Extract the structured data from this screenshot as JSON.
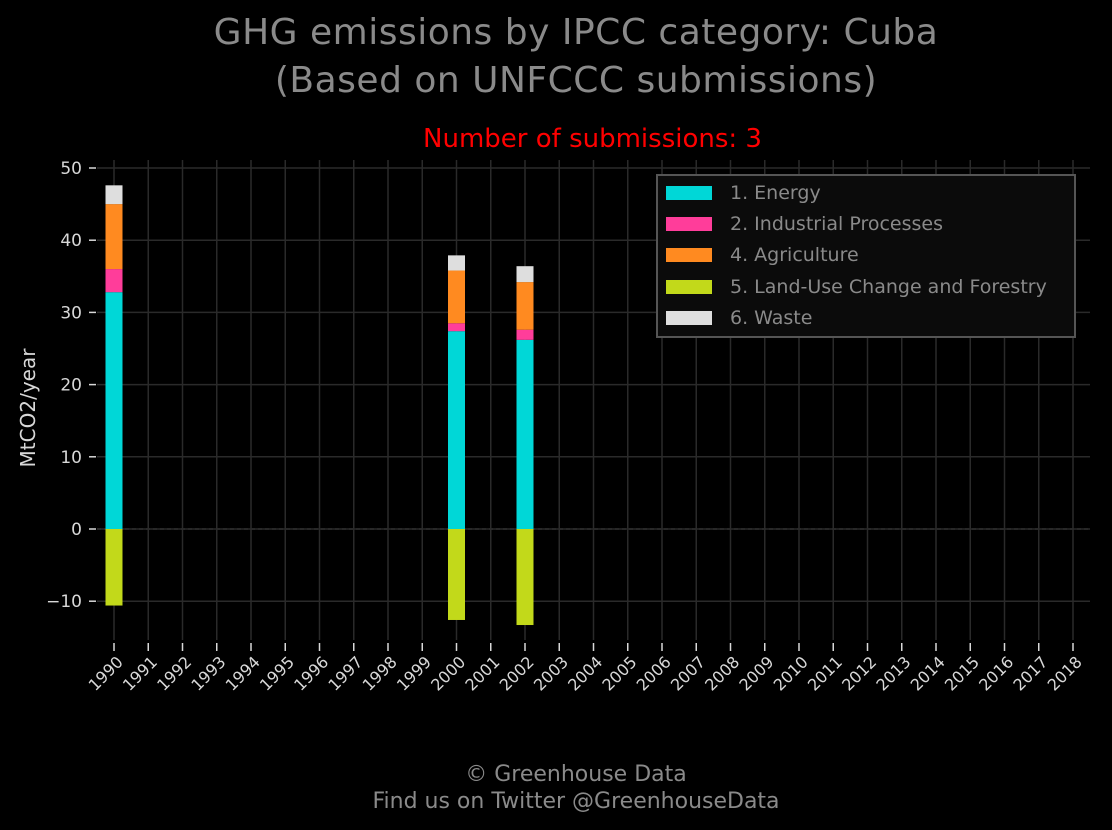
{
  "title_line1": "GHG emissions by IPCC category: Cuba",
  "title_line2": "(Based on UNFCCC submissions)",
  "subtitle": "Number of submissions: 3",
  "footer_line1": "© Greenhouse Data",
  "footer_line2": "Find us on Twitter @GreenhouseData",
  "colors": {
    "background": "#000000",
    "grid": "#2a2a2a",
    "tick_label": "#d8d8d8",
    "title": "#8a8a8a",
    "subtitle": "#ff0000"
  },
  "chart_data": {
    "type": "bar",
    "stacked": true,
    "title": "GHG emissions by IPCC category: Cuba (Based on UNFCCC submissions)",
    "subtitle": "Number of submissions: 3",
    "xlabel": "",
    "ylabel": "MtCO2/year",
    "ylim": [
      -16,
      51
    ],
    "yticks": [
      50,
      40,
      30,
      20,
      10,
      0,
      -10
    ],
    "ytick_labels": [
      "50",
      "40",
      "30",
      "20",
      "10",
      "0",
      "−10"
    ],
    "grid": true,
    "legend_position": "top-right",
    "categories": [
      "1990",
      "1991",
      "1992",
      "1993",
      "1994",
      "1995",
      "1996",
      "1997",
      "1998",
      "1999",
      "2000",
      "2001",
      "2002",
      "2003",
      "2004",
      "2005",
      "2006",
      "2007",
      "2008",
      "2009",
      "2010",
      "2011",
      "2012",
      "2013",
      "2014",
      "2015",
      "2016",
      "2017",
      "2018"
    ],
    "series": [
      {
        "name": "1. Energy",
        "color": "#00d7d7",
        "values": [
          32.8,
          null,
          null,
          null,
          null,
          null,
          null,
          null,
          null,
          null,
          27.4,
          null,
          26.2,
          null,
          null,
          null,
          null,
          null,
          null,
          null,
          null,
          null,
          null,
          null,
          null,
          null,
          null,
          null,
          null
        ]
      },
      {
        "name": "2. Industrial Processes",
        "color": "#ff3d9a",
        "values": [
          3.2,
          null,
          null,
          null,
          null,
          null,
          null,
          null,
          null,
          null,
          1.1,
          null,
          1.4,
          null,
          null,
          null,
          null,
          null,
          null,
          null,
          null,
          null,
          null,
          null,
          null,
          null,
          null,
          null,
          null
        ]
      },
      {
        "name": "4. Agriculture",
        "color": "#ff8a20",
        "values": [
          9.0,
          null,
          null,
          null,
          null,
          null,
          null,
          null,
          null,
          null,
          7.3,
          null,
          6.6,
          null,
          null,
          null,
          null,
          null,
          null,
          null,
          null,
          null,
          null,
          null,
          null,
          null,
          null,
          null,
          null
        ]
      },
      {
        "name": "5. Land-Use Change and Forestry",
        "color": "#c2d91a",
        "values": [
          -10.6,
          null,
          null,
          null,
          null,
          null,
          null,
          null,
          null,
          null,
          -12.6,
          null,
          -13.3,
          null,
          null,
          null,
          null,
          null,
          null,
          null,
          null,
          null,
          null,
          null,
          null,
          null,
          null,
          null,
          null
        ]
      },
      {
        "name": "6. Waste",
        "color": "#dedede",
        "values": [
          2.6,
          null,
          null,
          null,
          null,
          null,
          null,
          null,
          null,
          null,
          2.1,
          null,
          2.2,
          null,
          null,
          null,
          null,
          null,
          null,
          null,
          null,
          null,
          null,
          null,
          null,
          null,
          null,
          null,
          null
        ]
      }
    ]
  }
}
